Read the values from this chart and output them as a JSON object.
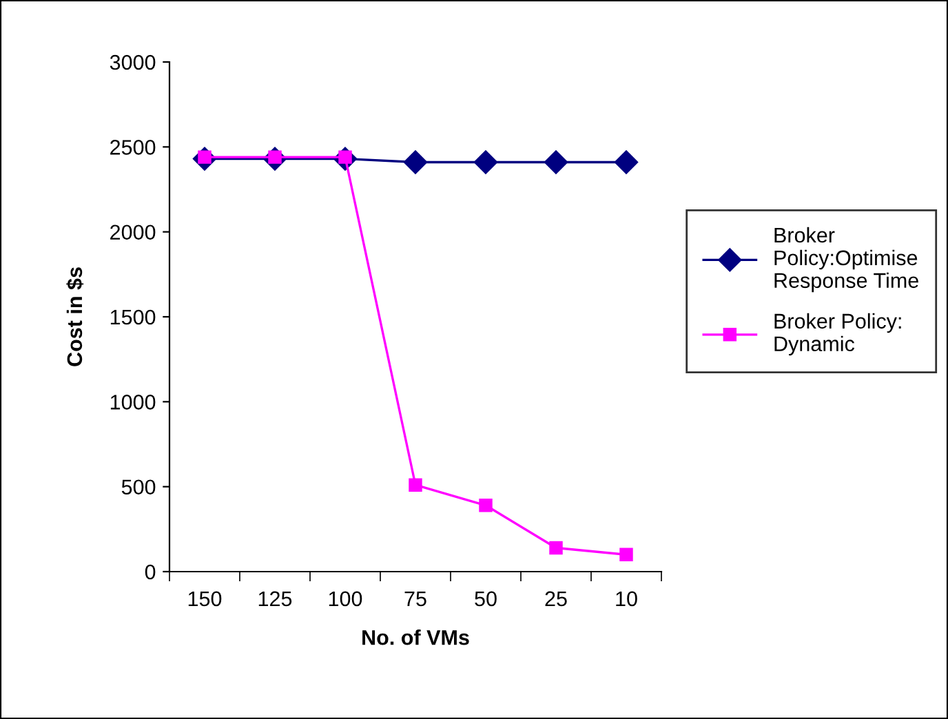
{
  "chart_data": {
    "type": "line",
    "xlabel": "No. of VMs",
    "ylabel": "Cost in $s",
    "categories": [
      "150",
      "125",
      "100",
      "75",
      "50",
      "25",
      "10"
    ],
    "series": [
      {
        "name": "Broker\nPolicy:Optimise\nResponse Time",
        "color": "#000080",
        "marker": "diamond",
        "values": [
          2430,
          2430,
          2430,
          2410,
          2410,
          2410,
          2410
        ]
      },
      {
        "name": "Broker Policy:\nDynamic",
        "color": "#ff00ff",
        "marker": "square",
        "values": [
          2440,
          2440,
          2440,
          510,
          390,
          140,
          100
        ]
      }
    ],
    "ylim": [
      0,
      3000
    ],
    "yticks": [
      0,
      500,
      1000,
      1500,
      2000,
      2500,
      3000
    ],
    "grid": false,
    "legend": "right"
  }
}
